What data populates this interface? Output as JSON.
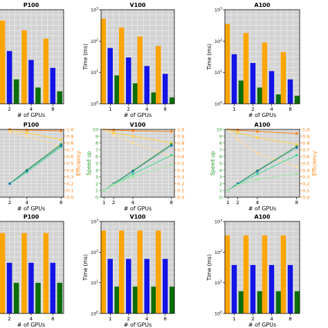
{
  "colors": {
    "orange": "#ffa500",
    "blue": "#1414e6",
    "green": "#0a6e0a",
    "speedup_axis": "#2ca02c",
    "efficiency_axis": "#ff7f0e",
    "panel_bg": "#d3d3d3"
  },
  "chart_data": [
    {
      "type": "bar",
      "row": 1,
      "title": "P100",
      "xlabel": "# of GPUs",
      "ylabel": "",
      "log_y": true,
      "ylim": [
        1,
        1000
      ],
      "categories": [
        "2",
        "4",
        "8"
      ],
      "grid": true,
      "series": [
        {
          "color": "orange",
          "values": [
            450,
            220,
            120
          ]
        },
        {
          "color": "blue",
          "values": [
            48,
            25,
            14
          ]
        },
        {
          "color": "green",
          "values": [
            6,
            3.3,
            2.5
          ]
        }
      ]
    },
    {
      "type": "bar",
      "row": 1,
      "title": "V100",
      "xlabel": "# of GPUs",
      "ylabel": "Time (ms)",
      "log_y": true,
      "ylim": [
        1,
        1000
      ],
      "categories": [
        "1",
        "2",
        "4",
        "8"
      ],
      "grid": true,
      "yticks": [
        "10^0",
        "10^1",
        "10^2",
        "10^3"
      ],
      "series": [
        {
          "color": "orange",
          "values": [
            520,
            270,
            140,
            70
          ]
        },
        {
          "color": "blue",
          "values": [
            60,
            30,
            16,
            9
          ]
        },
        {
          "color": "green",
          "values": [
            8,
            4.5,
            2.3,
            1.6
          ]
        }
      ]
    },
    {
      "type": "bar",
      "row": 1,
      "title": "A100",
      "xlabel": "# of GPUs",
      "ylabel": "Time (ms)",
      "log_y": true,
      "ylim": [
        1,
        1000
      ],
      "categories": [
        "1",
        "2",
        "4",
        "8"
      ],
      "grid": true,
      "yticks": [
        "10^0",
        "10^1",
        "10^2",
        "10^3"
      ],
      "series": [
        {
          "color": "orange",
          "values": [
            350,
            180,
            90,
            45
          ]
        },
        {
          "color": "blue",
          "values": [
            38,
            20,
            11,
            6
          ]
        },
        {
          "color": "green",
          "values": [
            5.5,
            3.3,
            2,
            1.8
          ]
        }
      ]
    },
    {
      "type": "line",
      "row": 2,
      "title": "P100",
      "xlabel": "# of GPUs",
      "ylabel_right": "Efficiency",
      "x": [
        2,
        4,
        8
      ],
      "xticks": [
        "2",
        "4",
        "8"
      ],
      "yticks_right": [
        "0.0",
        "0.1",
        "0.2",
        "0.3",
        "0.4",
        "0.5",
        "0.6",
        "0.7",
        "0.8",
        "0.9",
        "1.0"
      ],
      "speedup_series": [
        {
          "color": "#2ca02c",
          "values": [
            2,
            4,
            7.8
          ]
        },
        {
          "color": "#3cd890",
          "values": [
            2,
            3.7,
            7.4
          ]
        },
        {
          "color": "#1f77b4",
          "values": [
            2,
            3.9,
            7.6
          ]
        }
      ],
      "efficiency_series": [
        {
          "color": "#ff7f0e",
          "values": [
            1.0,
            0.99,
            0.98
          ]
        },
        {
          "color": "#ffd23c",
          "values": [
            0.98,
            0.95,
            0.85
          ]
        },
        {
          "color": "#ffdca0",
          "values": [
            0.96,
            0.9,
            0.75
          ]
        }
      ]
    },
    {
      "type": "line",
      "row": 2,
      "title": "V100",
      "xlabel": "# of GPUs",
      "ylabel": "Speed up",
      "x": [
        1,
        2,
        4,
        8
      ],
      "xticks": [
        "1",
        "2",
        "4",
        "8"
      ],
      "yticks_left": [
        "0",
        "1",
        "2",
        "3",
        "4",
        "5",
        "6",
        "7",
        "8",
        "9",
        "10"
      ],
      "yticks_right": [
        "0.0",
        "0.1",
        "0.2",
        "0.3",
        "0.4",
        "0.5",
        "0.6",
        "0.7",
        "0.8",
        "0.9",
        "1.0"
      ],
      "speedup_series": [
        {
          "color": "#2ca02c",
          "values": [
            1,
            2,
            3.9,
            7.8
          ]
        },
        {
          "color": "#3cd890",
          "values": [
            1,
            1.9,
            3.4,
            6.2
          ]
        },
        {
          "color": "#1f77b4",
          "values": [
            1,
            2,
            3.8,
            7.6
          ]
        },
        {
          "color": "#a0e8a0",
          "values": [
            1,
            1.9,
            3.0,
            4.8
          ]
        }
      ],
      "efficiency_series": [
        {
          "color": "#ff7f0e",
          "values": [
            1.0,
            0.99,
            0.98,
            0.97
          ]
        },
        {
          "color": "#ffd23c",
          "values": [
            1.0,
            0.95,
            0.9,
            0.8
          ]
        },
        {
          "color": "#ffdca0",
          "values": [
            1.0,
            0.92,
            0.8,
            0.6
          ]
        }
      ]
    },
    {
      "type": "line",
      "row": 2,
      "title": "A100",
      "xlabel": "# of GPUs",
      "ylabel": "Speed up",
      "ylabel_right": "Efficiency",
      "x": [
        1,
        2,
        4,
        8
      ],
      "xticks": [
        "1",
        "2",
        "4",
        "8"
      ],
      "yticks_left": [
        "0",
        "1",
        "2",
        "3",
        "4",
        "5",
        "6",
        "7",
        "8",
        "9",
        "10"
      ],
      "yticks_right": [
        "0.0",
        "0.1",
        "0.2",
        "0.3",
        "0.4",
        "0.5",
        "0.6",
        "0.7",
        "0.8",
        "0.9",
        "1.0"
      ],
      "speedup_series": [
        {
          "color": "#2ca02c",
          "values": [
            1,
            2,
            3.9,
            7.5
          ]
        },
        {
          "color": "#3cd890",
          "values": [
            1,
            1.9,
            3.4,
            6.2
          ]
        },
        {
          "color": "#1f77b4",
          "values": [
            1,
            2,
            3.8,
            7.3
          ]
        },
        {
          "color": "#a0e8a0",
          "values": [
            1,
            1.8,
            2.6,
            3.5
          ]
        }
      ],
      "efficiency_series": [
        {
          "color": "#ff7f0e",
          "values": [
            1.0,
            0.99,
            0.97,
            0.94
          ]
        },
        {
          "color": "#ffd23c",
          "values": [
            1.0,
            0.95,
            0.88,
            0.78
          ]
        },
        {
          "color": "#ffdca0",
          "values": [
            1.0,
            0.85,
            0.65,
            0.45
          ]
        }
      ]
    },
    {
      "type": "bar",
      "row": 3,
      "title": "P100",
      "xlabel": "# of GPUs",
      "ylabel": "",
      "log_y": true,
      "ylim": [
        1,
        1000
      ],
      "categories": [
        "2",
        "4",
        "8"
      ],
      "grid": true,
      "series": [
        {
          "color": "orange",
          "values": [
            420,
            420,
            420
          ]
        },
        {
          "color": "blue",
          "values": [
            45,
            45,
            45
          ]
        },
        {
          "color": "green",
          "values": [
            10,
            10,
            10
          ]
        }
      ]
    },
    {
      "type": "bar",
      "row": 3,
      "title": "V100",
      "xlabel": "# of GPUs",
      "ylabel": "Time (ms)",
      "log_y": true,
      "ylim": [
        1,
        1000
      ],
      "categories": [
        "1",
        "2",
        "4",
        "8"
      ],
      "grid": true,
      "yticks": [
        "10^0",
        "10^1",
        "10^2",
        "10^3"
      ],
      "series": [
        {
          "color": "orange",
          "values": [
            500,
            500,
            500,
            500
          ]
        },
        {
          "color": "blue",
          "values": [
            60,
            60,
            60,
            60
          ]
        },
        {
          "color": "green",
          "values": [
            7.5,
            7.5,
            7.5,
            7.5
          ]
        }
      ]
    },
    {
      "type": "bar",
      "row": 3,
      "title": "A100",
      "xlabel": "# of GPUs",
      "ylabel": "Time (ms)",
      "log_y": true,
      "ylim": [
        1,
        1000
      ],
      "categories": [
        "1",
        "2",
        "4",
        "8"
      ],
      "grid": true,
      "yticks": [
        "10^0",
        "10^1",
        "10^2",
        "10^3"
      ],
      "series": [
        {
          "color": "orange",
          "values": [
            350,
            350,
            350,
            350
          ]
        },
        {
          "color": "blue",
          "values": [
            38,
            38,
            38,
            38
          ]
        },
        {
          "color": "green",
          "values": [
            5.3,
            5.3,
            5.3,
            5.3
          ]
        }
      ]
    }
  ]
}
